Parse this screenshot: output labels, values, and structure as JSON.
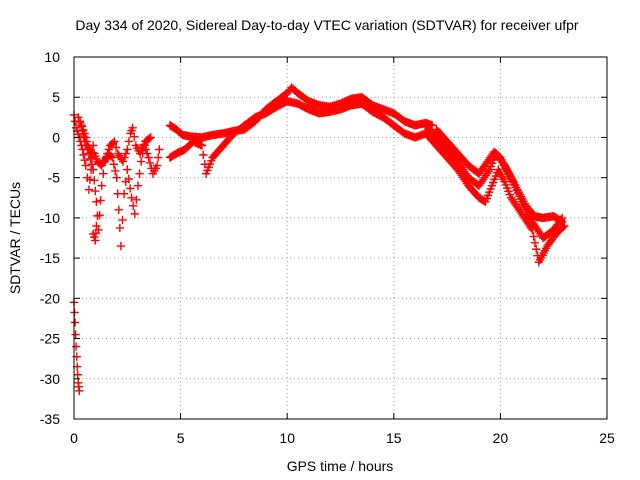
{
  "chart_data": {
    "type": "scatter",
    "title": "Day 334 of 2020, Sidereal Day-to-day VTEC variation (SDTVAR) for receiver ufpr",
    "xlabel": "GPS time / hours",
    "ylabel": "SDTVAR / TECUs",
    "xlim": [
      0,
      25
    ],
    "ylim": [
      -35,
      10
    ],
    "x_ticks": [
      0,
      5,
      10,
      15,
      20,
      25
    ],
    "y_ticks": [
      10,
      5,
      0,
      -5,
      -10,
      -15,
      -20,
      -25,
      -30,
      -35
    ],
    "grid": true,
    "marker": "+",
    "colors": {
      "series": "#ff0000",
      "grid": "#a0a0a0",
      "axis": "#000000"
    },
    "series": [
      {
        "name": "SDTVAR",
        "description_points": "approximate traces read from plot (x in hours, y in TECU)",
        "traces": [
          [
            [
              0.0,
              2.8
            ],
            [
              0.1,
              1.2
            ],
            [
              0.25,
              0.0
            ],
            [
              0.4,
              -1.5
            ],
            [
              0.55,
              -3.5
            ],
            [
              0.7,
              -6.5
            ],
            [
              0.8,
              -4.0
            ],
            [
              0.9,
              -1.0
            ]
          ],
          [
            [
              0.2,
              2.5
            ],
            [
              0.35,
              1.5
            ],
            [
              0.5,
              -0.5
            ],
            [
              0.7,
              -2.0
            ],
            [
              0.9,
              -4.0
            ],
            [
              1.05,
              -8.0
            ],
            [
              1.15,
              -11.5
            ],
            [
              1.3,
              -6.0
            ],
            [
              1.45,
              -3.0
            ],
            [
              1.6,
              -2.0
            ],
            [
              1.8,
              -2.5
            ],
            [
              2.0,
              -5.0
            ],
            [
              2.1,
              -9.0
            ],
            [
              2.2,
              -13.5
            ],
            [
              2.35,
              -7.0
            ],
            [
              2.5,
              -4.0
            ],
            [
              2.7,
              -7.5
            ],
            [
              2.85,
              -9.5
            ],
            [
              3.0,
              -6.0
            ],
            [
              3.15,
              -3.0
            ],
            [
              3.3,
              -1.0
            ],
            [
              3.5,
              -2.5
            ],
            [
              3.7,
              -4.5
            ],
            [
              3.9,
              -3.5
            ],
            [
              4.0,
              -1.5
            ]
          ],
          [
            [
              0.3,
              1.8
            ],
            [
              0.5,
              0.5
            ],
            [
              0.65,
              -1.0
            ],
            [
              0.8,
              -1.8
            ],
            [
              0.95,
              -2.0
            ],
            [
              1.1,
              -3.0
            ],
            [
              1.3,
              -3.5
            ],
            [
              1.5,
              -2.5
            ],
            [
              1.7,
              -1.0
            ],
            [
              1.9,
              -0.5
            ],
            [
              2.05,
              -2.0
            ],
            [
              2.3,
              -3.0
            ],
            [
              2.5,
              -1.5
            ],
            [
              2.65,
              0.5
            ],
            [
              2.75,
              1.2
            ],
            [
              2.9,
              -1.0
            ],
            [
              3.1,
              -2.0
            ],
            [
              3.35,
              -0.5
            ],
            [
              3.6,
              0.0
            ]
          ],
          [
            [
              0.9,
              -12.0
            ],
            [
              1.0,
              -12.8
            ],
            [
              1.05,
              -11.0
            ]
          ],
          [
            [
              0.0,
              -20.5
            ],
            [
              0.05,
              -23.0
            ],
            [
              0.1,
              -26.0
            ],
            [
              0.15,
              -28.5
            ],
            [
              0.2,
              -30.5
            ],
            [
              0.25,
              -31.5
            ]
          ],
          [
            [
              4.5,
              1.5
            ],
            [
              4.8,
              1.0
            ],
            [
              5.1,
              0.3
            ],
            [
              5.5,
              0.1
            ],
            [
              6.0,
              0.0
            ],
            [
              6.5,
              0.3
            ],
            [
              7.0,
              0.5
            ],
            [
              7.5,
              0.8
            ],
            [
              8.0,
              1.0
            ],
            [
              8.5,
              2.0
            ],
            [
              9.0,
              3.5
            ],
            [
              9.5,
              4.5
            ],
            [
              10.0,
              5.5
            ],
            [
              10.2,
              6.2
            ],
            [
              10.5,
              5.5
            ],
            [
              11.0,
              4.5
            ],
            [
              11.5,
              4.0
            ],
            [
              12.0,
              3.8
            ],
            [
              12.5,
              4.2
            ],
            [
              13.0,
              4.8
            ],
            [
              13.5,
              5.0
            ],
            [
              14.0,
              4.0
            ],
            [
              14.5,
              3.5
            ],
            [
              15.0,
              3.0
            ],
            [
              15.5,
              2.0
            ],
            [
              16.0,
              1.5
            ],
            [
              16.5,
              1.8
            ],
            [
              16.8,
              1.5
            ]
          ],
          [
            [
              4.5,
              -2.5
            ],
            [
              4.8,
              -2.0
            ],
            [
              5.2,
              -1.5
            ],
            [
              5.6,
              -0.5
            ],
            [
              6.0,
              -1.0
            ],
            [
              6.2,
              -4.5
            ],
            [
              6.5,
              -2.5
            ],
            [
              7.0,
              -1.0
            ],
            [
              7.5,
              0.5
            ],
            [
              8.0,
              1.5
            ],
            [
              8.5,
              2.5
            ],
            [
              9.0,
              3.0
            ],
            [
              9.5,
              3.8
            ],
            [
              10.0,
              4.5
            ],
            [
              10.5,
              4.2
            ],
            [
              11.0,
              3.5
            ],
            [
              11.5,
              3.0
            ],
            [
              12.0,
              3.2
            ],
            [
              12.5,
              3.5
            ],
            [
              13.0,
              4.0
            ],
            [
              13.5,
              4.2
            ],
            [
              14.0,
              3.2
            ],
            [
              14.5,
              2.5
            ],
            [
              15.0,
              1.5
            ],
            [
              15.5,
              0.5
            ],
            [
              16.0,
              0.0
            ],
            [
              16.5,
              0.5
            ]
          ],
          [
            [
              16.5,
              1.5
            ],
            [
              17.0,
              0.0
            ],
            [
              17.5,
              -1.5
            ],
            [
              18.0,
              -3.0
            ],
            [
              18.5,
              -5.0
            ],
            [
              19.0,
              -6.0
            ],
            [
              19.5,
              -4.0
            ],
            [
              19.8,
              -2.0
            ],
            [
              20.2,
              -3.5
            ],
            [
              20.6,
              -5.5
            ],
            [
              21.0,
              -8.0
            ],
            [
              21.5,
              -10.5
            ],
            [
              22.0,
              -12.5
            ],
            [
              22.5,
              -11.5
            ],
            [
              22.9,
              -10.0
            ]
          ],
          [
            [
              16.5,
              0.5
            ],
            [
              17.0,
              -1.0
            ],
            [
              17.5,
              -2.5
            ],
            [
              18.0,
              -4.0
            ],
            [
              18.5,
              -6.0
            ],
            [
              19.0,
              -7.5
            ],
            [
              19.3,
              -8.0
            ],
            [
              19.6,
              -6.0
            ],
            [
              19.9,
              -4.0
            ],
            [
              20.2,
              -5.5
            ],
            [
              20.5,
              -7.5
            ],
            [
              21.0,
              -9.5
            ],
            [
              21.5,
              -11.5
            ],
            [
              21.8,
              -15.5
            ],
            [
              22.2,
              -13.5
            ],
            [
              22.6,
              -12.0
            ],
            [
              23.0,
              -11.0
            ]
          ],
          [
            [
              17.0,
              1.0
            ],
            [
              17.5,
              -0.5
            ],
            [
              18.0,
              -2.0
            ],
            [
              18.5,
              -3.5
            ],
            [
              19.0,
              -4.5
            ],
            [
              19.4,
              -3.0
            ],
            [
              19.7,
              -1.8
            ],
            [
              20.0,
              -2.5
            ],
            [
              20.4,
              -4.5
            ],
            [
              20.8,
              -6.5
            ],
            [
              21.2,
              -8.5
            ],
            [
              21.6,
              -9.8
            ],
            [
              22.0,
              -10.0
            ],
            [
              22.5,
              -9.8
            ],
            [
              22.9,
              -10.5
            ]
          ]
        ]
      }
    ]
  }
}
